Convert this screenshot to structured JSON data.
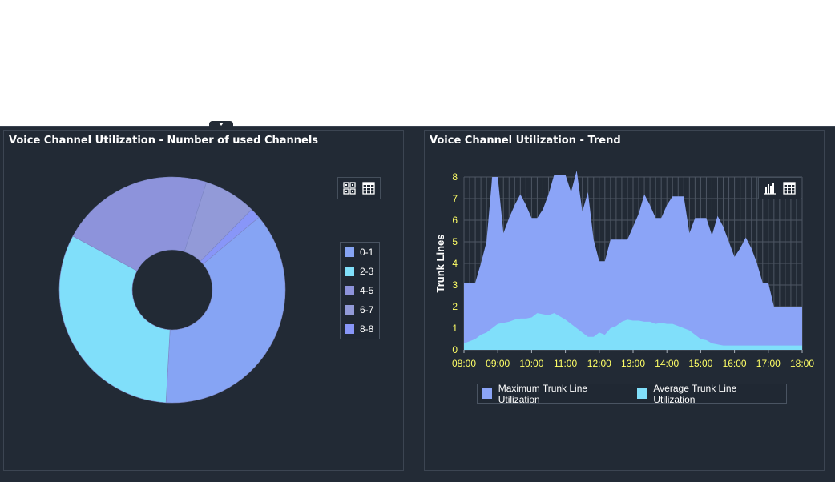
{
  "left_panel": {
    "title": "Voice Channel Utilization - Number of used Channels"
  },
  "right_panel": {
    "title": "Voice Channel Utilization - Trend"
  },
  "toolbar": {
    "left_icons": [
      "chart-view-icon",
      "table-view-icon"
    ],
    "right_icons": [
      "bar-chart-icon",
      "table-view-icon"
    ]
  },
  "colors": {
    "background": "#232b36",
    "axis_label": "#ffff66",
    "max_area": "#8ba4f7",
    "avg_area": "#80dffa"
  },
  "chart_data": [
    {
      "type": "pie",
      "donut": true,
      "title": "Voice Channel Utilization - Number of used Channels",
      "legend_position": "right",
      "slices": [
        {
          "label": "0-1",
          "value": 37,
          "color": "#86a4f4"
        },
        {
          "label": "2-3",
          "value": 32,
          "color": "#80dffa"
        },
        {
          "label": "4-5",
          "value": 22,
          "color": "#8d93db"
        },
        {
          "label": "6-7",
          "value": 7.5,
          "color": "#929ad8"
        },
        {
          "label": "8-8",
          "value": 1.5,
          "color": "#8896f8"
        }
      ]
    },
    {
      "type": "area",
      "title": "Voice Channel Utilization - Trend",
      "ylabel": "Trunk Lines",
      "xlabel": "",
      "ylim": [
        0,
        8
      ],
      "y_ticks": [
        "0",
        "1",
        "2",
        "3",
        "4",
        "5",
        "6",
        "7",
        "8"
      ],
      "x_ticks": [
        "08:00",
        "09:00",
        "10:00",
        "11:00",
        "12:00",
        "13:00",
        "14:00",
        "15:00",
        "16:00",
        "17:00",
        "18:00"
      ],
      "grid": true,
      "legend_position": "bottom",
      "x": [
        "08:00",
        "08:10",
        "08:20",
        "08:30",
        "08:40",
        "08:50",
        "09:00",
        "09:10",
        "09:20",
        "09:30",
        "09:40",
        "09:50",
        "10:00",
        "10:10",
        "10:20",
        "10:30",
        "10:40",
        "10:50",
        "11:00",
        "11:10",
        "11:20",
        "11:30",
        "11:40",
        "11:50",
        "12:00",
        "12:10",
        "12:20",
        "12:30",
        "12:40",
        "12:50",
        "13:00",
        "13:10",
        "13:20",
        "13:30",
        "13:40",
        "13:50",
        "14:00",
        "14:10",
        "14:20",
        "14:30",
        "14:40",
        "14:50",
        "15:00",
        "15:10",
        "15:20",
        "15:30",
        "15:40",
        "15:50",
        "16:00",
        "16:10",
        "16:20",
        "16:30",
        "16:40",
        "16:50",
        "17:00",
        "17:10",
        "17:20",
        "17:30",
        "17:40",
        "17:50",
        "18:00"
      ],
      "series": [
        {
          "name": "Maximum Trunk Line Utilization",
          "color": "#8ba4f7",
          "values": [
            3.1,
            3.1,
            3.1,
            4.0,
            5.0,
            8.0,
            8.0,
            5.4,
            6.1,
            6.7,
            7.2,
            6.7,
            6.1,
            6.1,
            6.5,
            7.2,
            8.1,
            8.1,
            8.1,
            7.3,
            8.3,
            6.4,
            7.3,
            5.1,
            4.1,
            4.1,
            5.1,
            5.1,
            5.1,
            5.1,
            5.7,
            6.3,
            7.2,
            6.7,
            6.1,
            6.1,
            6.7,
            7.1,
            7.1,
            7.1,
            5.4,
            6.1,
            6.1,
            6.1,
            5.3,
            6.2,
            5.7,
            5.0,
            4.3,
            4.7,
            5.2,
            4.7,
            4.0,
            3.1,
            3.1,
            2.0,
            2.0,
            2.0,
            2.0,
            2.0,
            2.0
          ]
        },
        {
          "name": "Average Trunk Line Utilization",
          "color": "#80dffa",
          "values": [
            0.3,
            0.4,
            0.5,
            0.7,
            0.8,
            1.0,
            1.2,
            1.25,
            1.3,
            1.4,
            1.45,
            1.45,
            1.5,
            1.7,
            1.65,
            1.6,
            1.7,
            1.55,
            1.4,
            1.2,
            1.0,
            0.8,
            0.6,
            0.6,
            0.8,
            0.7,
            1.0,
            1.1,
            1.3,
            1.4,
            1.35,
            1.35,
            1.3,
            1.3,
            1.2,
            1.25,
            1.2,
            1.2,
            1.1,
            1.0,
            0.9,
            0.7,
            0.5,
            0.45,
            0.3,
            0.25,
            0.2,
            0.2,
            0.2,
            0.2,
            0.2,
            0.2,
            0.2,
            0.2,
            0.2,
            0.2,
            0.2,
            0.2,
            0.2,
            0.2,
            0.2
          ]
        }
      ]
    }
  ]
}
